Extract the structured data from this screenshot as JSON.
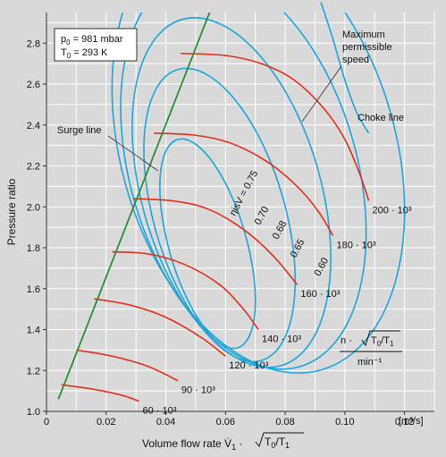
{
  "chart_data": {
    "type": "line",
    "title": "",
    "xlabel_main": "Volume flow rate V̇",
    "xlabel_sub": "1",
    "xlabel_sqrt": "T",
    "xlabel_sqrt_sub0": "0",
    "xlabel_sqrt_over": "/T",
    "xlabel_sqrt_sub1": "1",
    "ylabel": "Pressure ratio",
    "x_unit": "[m³/s]",
    "xlim": [
      0,
      0.13
    ],
    "ylim": [
      1.0,
      2.95
    ],
    "x_ticks": [
      "0",
      "0.02",
      "0.04",
      "0.06",
      "0.08",
      "0.10",
      "0.12"
    ],
    "x_tick_values": [
      0,
      0.02,
      0.04,
      0.06,
      0.08,
      0.1,
      0.12
    ],
    "y_ticks": [
      "1.0",
      "1.2",
      "1.4",
      "1.6",
      "1.8",
      "2.0",
      "2.2",
      "2.4",
      "2.6",
      "2.8"
    ],
    "y_tick_values": [
      1.0,
      1.2,
      1.4,
      1.6,
      1.8,
      2.0,
      2.2,
      2.4,
      2.6,
      2.8
    ],
    "grid": true,
    "legend_box": {
      "line1_sym": "p",
      "line1_sub": "0",
      "line1_rest": " = 981 mbar",
      "line2_sym": "T",
      "line2_sub": "0",
      "line2_rest": " = 293 K"
    },
    "annotations": {
      "surge": "Surge line",
      "max_speed_1": "Maximum",
      "max_speed_2": "permissible",
      "max_speed_3": "speed",
      "choke": "Choke line",
      "speed_param_num_a": "n · ",
      "speed_param_T": "T",
      "speed_param_sub0": "0",
      "speed_param_over": "/T",
      "speed_param_sub1": "1",
      "speed_param_den": "min⁻¹"
    },
    "colors": {
      "surge_line": "#2e8b3a",
      "speed_lines": "#e0301e",
      "efficiency_lines": "#1fa5d6",
      "background": "#d9d9d9",
      "grid": "#ffffff"
    },
    "surge_line": [
      [
        0.004,
        1.06
      ],
      [
        0.056,
        3.0
      ]
    ],
    "speed_lines": [
      {
        "label": "60 · 10³",
        "points": [
          [
            0.005,
            1.13
          ],
          [
            0.015,
            1.11
          ],
          [
            0.025,
            1.08
          ],
          [
            0.031,
            1.05
          ]
        ]
      },
      {
        "label": "90 · 10³",
        "points": [
          [
            0.01,
            1.3
          ],
          [
            0.022,
            1.27
          ],
          [
            0.034,
            1.22
          ],
          [
            0.044,
            1.15
          ]
        ]
      },
      {
        "label": "120 · 10³",
        "points": [
          [
            0.016,
            1.55
          ],
          [
            0.028,
            1.52
          ],
          [
            0.04,
            1.46
          ],
          [
            0.052,
            1.36
          ],
          [
            0.06,
            1.27
          ]
        ]
      },
      {
        "label": "140 · 10³",
        "points": [
          [
            0.022,
            1.78
          ],
          [
            0.034,
            1.77
          ],
          [
            0.046,
            1.72
          ],
          [
            0.058,
            1.62
          ],
          [
            0.066,
            1.5
          ],
          [
            0.071,
            1.4
          ]
        ]
      },
      {
        "label": "160 · 10³",
        "points": [
          [
            0.029,
            2.04
          ],
          [
            0.042,
            2.03
          ],
          [
            0.054,
            1.99
          ],
          [
            0.066,
            1.89
          ],
          [
            0.076,
            1.76
          ],
          [
            0.084,
            1.62
          ]
        ]
      },
      {
        "label": "180 · 10³",
        "points": [
          [
            0.036,
            2.36
          ],
          [
            0.05,
            2.35
          ],
          [
            0.062,
            2.31
          ],
          [
            0.074,
            2.22
          ],
          [
            0.084,
            2.1
          ],
          [
            0.091,
            1.98
          ],
          [
            0.096,
            1.86
          ]
        ]
      },
      {
        "label": "200 · 10³",
        "points": [
          [
            0.045,
            2.75
          ],
          [
            0.06,
            2.74
          ],
          [
            0.072,
            2.7
          ],
          [
            0.083,
            2.62
          ],
          [
            0.093,
            2.48
          ],
          [
            0.1,
            2.33
          ],
          [
            0.105,
            2.16
          ],
          [
            0.108,
            2.03
          ]
        ]
      }
    ],
    "efficiency_lines": [
      {
        "label": "ηisV = 0.75",
        "center": [
          0.054,
          1.82
        ],
        "rx": 0.013,
        "ry": 0.53
      },
      {
        "label": "0.70",
        "center": [
          0.058,
          1.96
        ],
        "rx": 0.022,
        "ry": 0.74
      },
      {
        "label": "0.68",
        "center": [
          0.062,
          2.07
        ],
        "rx": 0.03,
        "ry": 0.88
      },
      {
        "label": "0.65",
        "center": [
          0.066,
          2.18
        ],
        "rx": 0.038,
        "ry": 1.0
      },
      {
        "label": "0.60",
        "center": [
          0.071,
          2.28
        ],
        "rx": 0.046,
        "ry": 1.12
      }
    ],
    "choke_line": [
      [
        0.092,
        3.0
      ],
      [
        0.096,
        2.82
      ],
      [
        0.1,
        2.62
      ],
      [
        0.104,
        2.46
      ],
      [
        0.108,
        2.36
      ]
    ]
  }
}
